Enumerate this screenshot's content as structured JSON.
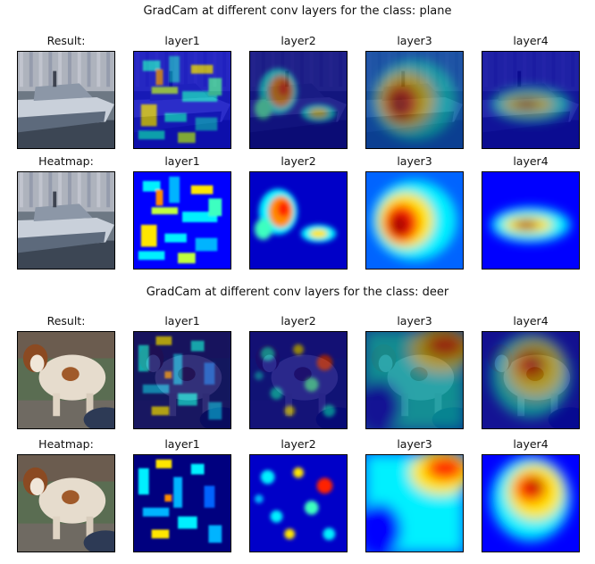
{
  "figures": [
    {
      "title": "GradCam at different conv layers for the class: plane",
      "subject": "boat",
      "rows": [
        {
          "kind": "overlay",
          "panels": [
            "Result:",
            "layer1",
            "layer2",
            "layer3",
            "layer4"
          ]
        },
        {
          "kind": "heatmap",
          "panels": [
            "Heatmap:",
            "layer1",
            "layer2",
            "layer3",
            "layer4"
          ]
        }
      ]
    },
    {
      "title": "GradCam at different conv layers for the class: deer",
      "subject": "dog",
      "rows": [
        {
          "kind": "overlay",
          "panels": [
            "Result:",
            "layer1",
            "layer2",
            "layer3",
            "layer4"
          ]
        },
        {
          "kind": "heatmap",
          "panels": [
            "Heatmap:",
            "layer1",
            "layer2",
            "layer3",
            "layer4"
          ]
        }
      ]
    }
  ],
  "colormap": "jet"
}
